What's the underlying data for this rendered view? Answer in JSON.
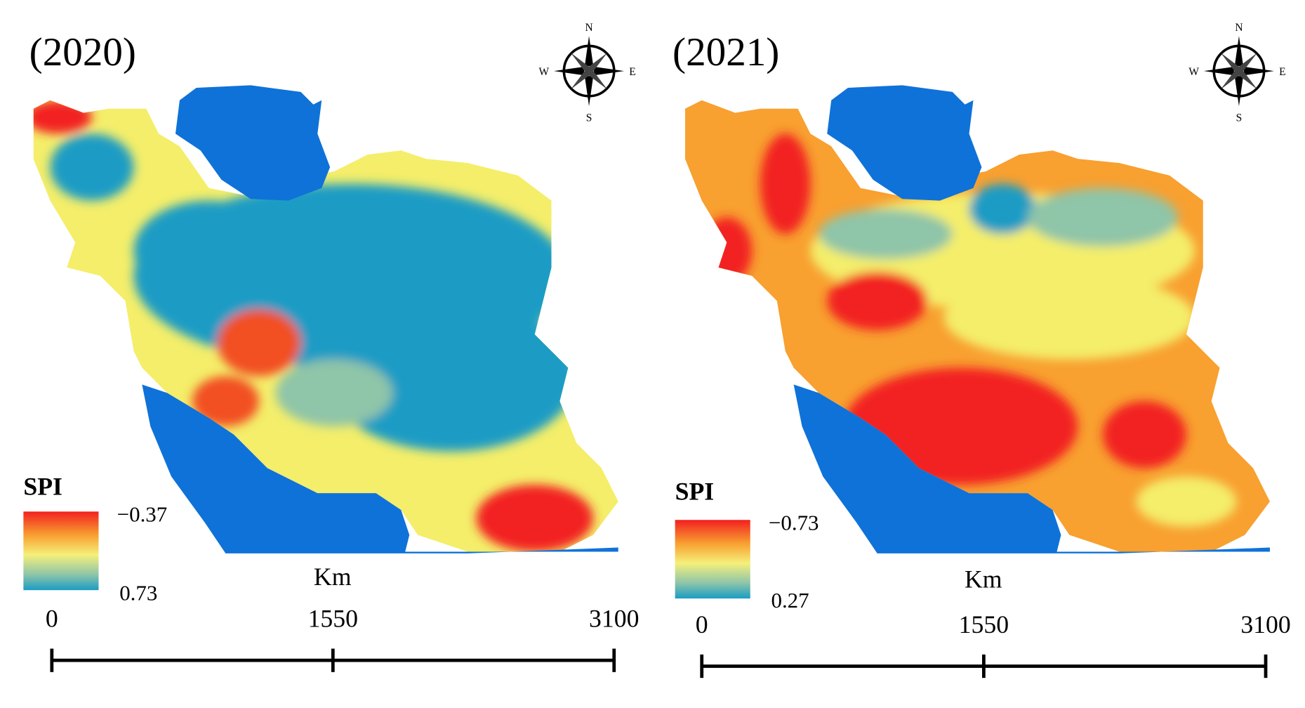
{
  "panels": [
    {
      "title": "(2020)",
      "legend": {
        "title": "SPI",
        "top_label": "−0.37",
        "bottom_label": "0.73"
      },
      "compass": {
        "n": "N",
        "e": "E",
        "s": "S",
        "w": "W"
      },
      "scale_bar": {
        "unit": "Km",
        "ticks": [
          0,
          1550,
          3100
        ]
      }
    },
    {
      "title": "(2021)",
      "legend": {
        "title": "SPI",
        "top_label": "−0.73",
        "bottom_label": "0.27"
      },
      "compass": {
        "n": "N",
        "e": "E",
        "s": "S",
        "w": "W"
      },
      "scale_bar": {
        "unit": "Km",
        "ticks": [
          0,
          1550,
          3100
        ]
      }
    }
  ]
}
